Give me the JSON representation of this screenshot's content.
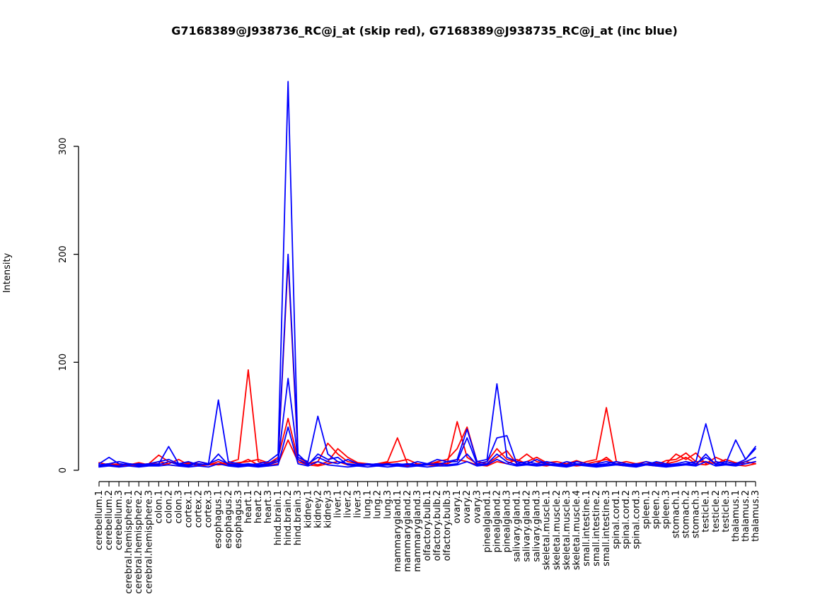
{
  "page": {
    "background": "#ffffff"
  },
  "chart_data": {
    "type": "line",
    "title": "G7168389@J938736_RC@j_at (skip red), G7168389@J938735_RC@j_at (inc blue)",
    "xlabel": "",
    "ylabel": "Intensity",
    "ylim": [
      0,
      370
    ],
    "yticks": [
      0,
      100,
      200,
      300
    ],
    "grid": false,
    "legend_position": "none (colors encoded in title: red = skip form, blue = inc form)",
    "categories": [
      "cerebellum.1",
      "cerebellum.2",
      "cerebellum.3",
      "cerebral.hemisphere.1",
      "cerebral.hemisphere.2",
      "cerebral.hemisphere.3",
      "colon.1",
      "colon.2",
      "colon.3",
      "cortex.1",
      "cortex.2",
      "cortex.3",
      "esophagus.1",
      "esophagus.2",
      "esophagus.3",
      "heart.1",
      "heart.2",
      "heart.3",
      "hind.brain.1",
      "hind.brain.2",
      "hind.brain.3",
      "kidney.1",
      "kidney.2",
      "kidney.3",
      "liver.1",
      "liver.2",
      "liver.3",
      "lung.1",
      "lung.2",
      "lung.3",
      "mammarygland.1",
      "mammarygland.2",
      "mammarygland.3",
      "olfactory.bulb.1",
      "olfactory.bulb.2",
      "olfactory.bulb.3",
      "ovary.1",
      "ovary.2",
      "ovary.3",
      "pinealgland.1",
      "pinealgland.2",
      "pinealgland.3",
      "salivary.gland.1",
      "salivary.gland.2",
      "salivary.gland.3",
      "skeletal.muscle.1",
      "skeletal.muscle.2",
      "skeletal.muscle.3",
      "skeletal.muscle.4",
      "small.intestine.1",
      "small.intestine.2",
      "small.intestine.3",
      "spinal.cord.1",
      "spinal.cord.2",
      "spinal.cord.3",
      "spleen.1",
      "spleen.2",
      "spleen.3",
      "stomach.1",
      "stomach.2",
      "stomach.3",
      "testicle.1",
      "testicle.2",
      "testicle.3",
      "thalamus.1",
      "thalamus.2",
      "thalamus.3"
    ],
    "series": [
      {
        "name": "J938736_RC skip red 1",
        "color": "#ff0000",
        "values": [
          5,
          6,
          5,
          6,
          5,
          6,
          14,
          8,
          6,
          7,
          6,
          5,
          6,
          7,
          10,
          93,
          8,
          6,
          12,
          48,
          10,
          6,
          8,
          25,
          15,
          8,
          6,
          5,
          6,
          8,
          30,
          6,
          5,
          6,
          7,
          6,
          45,
          12,
          6,
          8,
          20,
          10,
          8,
          15,
          8,
          6,
          5,
          6,
          5,
          8,
          10,
          58,
          8,
          6,
          5,
          6,
          7,
          6,
          15,
          10,
          16,
          6,
          12,
          8,
          6,
          8,
          6
        ]
      },
      {
        "name": "J938736_RC skip red 2",
        "color": "#ff0000",
        "values": [
          7,
          5,
          6,
          5,
          7,
          5,
          8,
          6,
          10,
          5,
          8,
          6,
          5,
          6,
          7,
          8,
          10,
          7,
          8,
          195,
          12,
          7,
          5,
          8,
          20,
          12,
          7,
          6,
          5,
          7,
          8,
          10,
          6,
          5,
          8,
          10,
          20,
          40,
          8,
          6,
          12,
          18,
          6,
          8,
          12,
          7,
          8,
          6,
          9,
          6,
          8,
          10,
          6,
          8,
          6,
          8,
          5,
          9,
          10,
          16,
          8,
          8,
          6,
          10,
          7,
          6,
          8
        ]
      },
      {
        "name": "J938736_RC skip red 3",
        "color": "#ff0000",
        "values": [
          4,
          5,
          4,
          5,
          4,
          5,
          6,
          5,
          4,
          6,
          4,
          5,
          8,
          5,
          6,
          10,
          5,
          4,
          6,
          28,
          8,
          5,
          4,
          6,
          8,
          5,
          4,
          5,
          4,
          6,
          5,
          4,
          6,
          5,
          4,
          6,
          10,
          8,
          5,
          4,
          8,
          6,
          10,
          6,
          5,
          4,
          6,
          5,
          4,
          5,
          6,
          12,
          5,
          4,
          6,
          5,
          4,
          6,
          8,
          12,
          6,
          5,
          8,
          6,
          5,
          4,
          6
        ]
      },
      {
        "name": "J938735_RC inc blue 4",
        "color": "#0000ff",
        "values": [
          3,
          4,
          3,
          4,
          3,
          4,
          4,
          5,
          4,
          3,
          4,
          3,
          6,
          4,
          3,
          4,
          3,
          4,
          5,
          40,
          6,
          4,
          8,
          5,
          4,
          3,
          4,
          3,
          4,
          3,
          4,
          3,
          4,
          3,
          4,
          4,
          5,
          8,
          4,
          5,
          10,
          6,
          4,
          5,
          4,
          5,
          4,
          3,
          5,
          4,
          3,
          4,
          5,
          4,
          3,
          5,
          4,
          3,
          4,
          5,
          4,
          8,
          4,
          5,
          4,
          6,
          8
        ]
      },
      {
        "name": "J938735_RC inc blue 3",
        "color": "#0000ff",
        "values": [
          4,
          5,
          4,
          6,
          4,
          5,
          5,
          8,
          5,
          4,
          6,
          5,
          15,
          5,
          4,
          5,
          4,
          5,
          8,
          85,
          10,
          5,
          15,
          10,
          12,
          5,
          4,
          5,
          4,
          5,
          4,
          5,
          4,
          5,
          6,
          5,
          6,
          15,
          5,
          6,
          15,
          8,
          5,
          6,
          5,
          6,
          5,
          4,
          6,
          5,
          4,
          5,
          6,
          5,
          4,
          6,
          5,
          4,
          5,
          6,
          5,
          15,
          5,
          6,
          5,
          8,
          12
        ]
      },
      {
        "name": "J938735_RC inc blue 2",
        "color": "#0000ff",
        "values": [
          5,
          6,
          8,
          6,
          5,
          6,
          8,
          10,
          6,
          8,
          5,
          6,
          10,
          6,
          5,
          6,
          5,
          6,
          10,
          200,
          15,
          6,
          12,
          8,
          6,
          10,
          6,
          5,
          6,
          5,
          6,
          5,
          8,
          6,
          10,
          8,
          8,
          30,
          6,
          8,
          30,
          32,
          6,
          8,
          6,
          8,
          6,
          5,
          8,
          6,
          5,
          6,
          8,
          6,
          5,
          8,
          6,
          5,
          6,
          8,
          6,
          12,
          6,
          8,
          6,
          10,
          20
        ]
      },
      {
        "name": "J938735_RC inc blue 1",
        "color": "#0000ff",
        "values": [
          6,
          12,
          6,
          5,
          6,
          5,
          6,
          22,
          6,
          5,
          8,
          6,
          65,
          8,
          6,
          5,
          6,
          8,
          15,
          360,
          12,
          8,
          50,
          15,
          8,
          6,
          5,
          6,
          5,
          6,
          5,
          6,
          5,
          6,
          5,
          8,
          10,
          38,
          8,
          10,
          80,
          12,
          8,
          6,
          10,
          6,
          5,
          8,
          6,
          5,
          6,
          8,
          6,
          5,
          6,
          5,
          8,
          6,
          5,
          6,
          8,
          43,
          8,
          6,
          28,
          10,
          22
        ]
      }
    ]
  },
  "axes": {
    "y_tick_labels": [
      "0",
      "100",
      "200",
      "300"
    ],
    "y_axis_title": "Intensity"
  },
  "colors": {
    "skip_series": "#ff0000",
    "inc_series": "#0000ff",
    "axis": "#000000",
    "title_text": "#000000"
  }
}
